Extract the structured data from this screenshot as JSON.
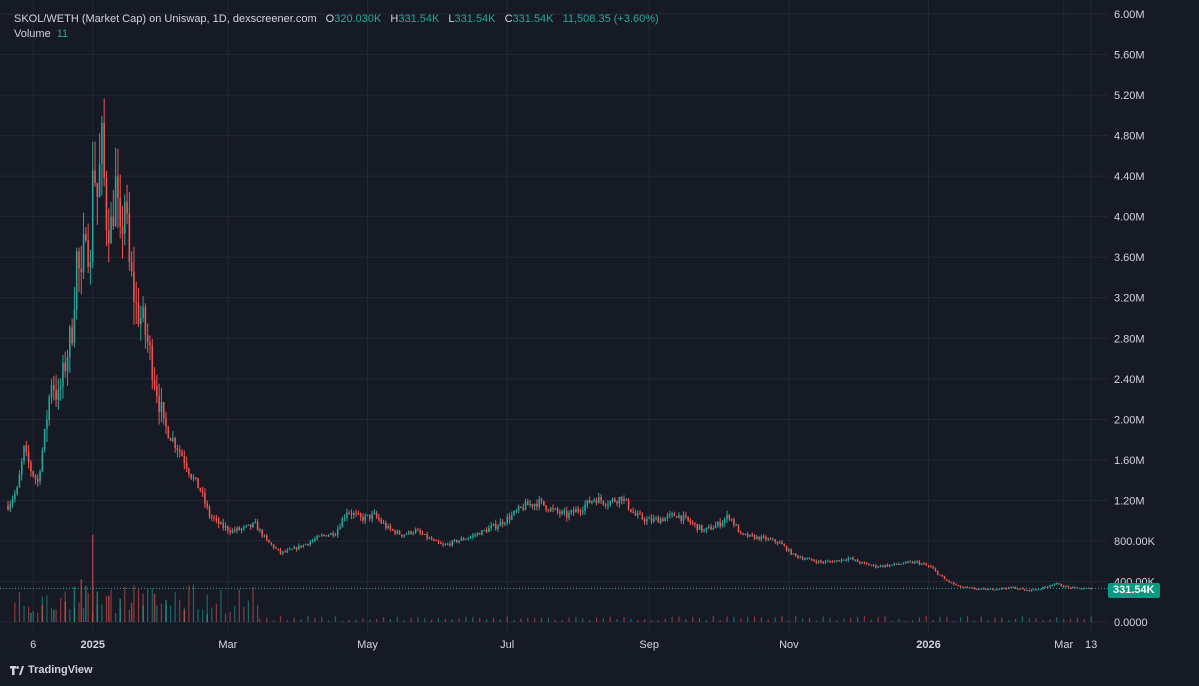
{
  "legend": {
    "pair": "SKOL/WETH (Market Cap) on Uniswap, 1D, dexscreener.com",
    "o_key": "O",
    "o_val": "320.030K",
    "h_key": "H",
    "h_val": "331.54K",
    "l_key": "L",
    "l_val": "331.54K",
    "c_key": "C",
    "c_val": "331.54K",
    "change": "11,508.35 (+3.60%)",
    "volume_label": "Volume",
    "volume_val": "11"
  },
  "last_price_badge": "331.54K",
  "branding": "TradingView",
  "colors": {
    "background": "#161a25",
    "grid": "#232734",
    "up": "#26a69a",
    "down": "#ef5350",
    "text": "#d1d4dc",
    "badge": "#089981"
  },
  "chart_data": {
    "type": "candlestick",
    "title": "SKOL/WETH (Market Cap) on Uniswap, 1D, dexscreener.com",
    "y_ticks": [
      "6.00M",
      "5.60M",
      "5.20M",
      "4.80M",
      "4.40M",
      "4.00M",
      "3.60M",
      "3.20M",
      "2.80M",
      "2.40M",
      "2.00M",
      "1.60M",
      "1.20M",
      "800.00K",
      "400.00K",
      "0.0000"
    ],
    "x_ticks": [
      "6",
      "2025",
      "Mar",
      "May",
      "Jul",
      "Sep",
      "Nov",
      "2026",
      "Mar",
      "13"
    ],
    "ylim": [
      0,
      6000000
    ],
    "x_range": [
      "2024-11-25",
      "2026-03-16"
    ],
    "series": [
      {
        "type": "market_cap_close",
        "points": [
          [
            "2024-11-25",
            1150000
          ],
          [
            "2024-11-29",
            1300000
          ],
          [
            "2024-12-02",
            1700000
          ],
          [
            "2024-12-05",
            1500000
          ],
          [
            "2024-12-08",
            1380000
          ],
          [
            "2024-12-11",
            1850000
          ],
          [
            "2024-12-14",
            2400000
          ],
          [
            "2024-12-17",
            2200000
          ],
          [
            "2024-12-20",
            2550000
          ],
          [
            "2024-12-23",
            2900000
          ],
          [
            "2024-12-25",
            3600000
          ],
          [
            "2024-12-27",
            3300000
          ],
          [
            "2024-12-29",
            4000000
          ],
          [
            "2024-12-31",
            3450000
          ],
          [
            "2025-01-01",
            4600000
          ],
          [
            "2025-01-03",
            4200000
          ],
          [
            "2025-01-05",
            4700000
          ],
          [
            "2025-01-07",
            4000000
          ],
          [
            "2025-01-09",
            3900000
          ],
          [
            "2025-01-11",
            4300000
          ],
          [
            "2025-01-13",
            3700000
          ],
          [
            "2025-01-15",
            4200000
          ],
          [
            "2025-01-17",
            3500000
          ],
          [
            "2025-01-20",
            3100000
          ],
          [
            "2025-01-23",
            2950000
          ],
          [
            "2025-01-26",
            2650000
          ],
          [
            "2025-01-29",
            2300000
          ],
          [
            "2025-02-01",
            1950000
          ],
          [
            "2025-02-05",
            1800000
          ],
          [
            "2025-02-09",
            1650000
          ],
          [
            "2025-02-13",
            1450000
          ],
          [
            "2025-02-17",
            1300000
          ],
          [
            "2025-02-21",
            1050000
          ],
          [
            "2025-02-26",
            950000
          ],
          [
            "2025-03-03",
            900000
          ],
          [
            "2025-03-08",
            920000
          ],
          [
            "2025-03-13",
            960000
          ],
          [
            "2025-03-18",
            800000
          ],
          [
            "2025-03-24",
            680000
          ],
          [
            "2025-03-30",
            720000
          ],
          [
            "2025-04-05",
            780000
          ],
          [
            "2025-04-11",
            850000
          ],
          [
            "2025-04-17",
            880000
          ],
          [
            "2025-04-22",
            1100000
          ],
          [
            "2025-04-28",
            1020000
          ],
          [
            "2025-05-04",
            1050000
          ],
          [
            "2025-05-10",
            920000
          ],
          [
            "2025-05-16",
            860000
          ],
          [
            "2025-05-22",
            900000
          ],
          [
            "2025-05-28",
            820000
          ],
          [
            "2025-06-03",
            750000
          ],
          [
            "2025-06-09",
            800000
          ],
          [
            "2025-06-15",
            840000
          ],
          [
            "2025-06-21",
            900000
          ],
          [
            "2025-06-27",
            960000
          ],
          [
            "2025-07-03",
            1050000
          ],
          [
            "2025-07-09",
            1150000
          ],
          [
            "2025-07-15",
            1180000
          ],
          [
            "2025-07-21",
            1100000
          ],
          [
            "2025-07-27",
            1050000
          ],
          [
            "2025-08-02",
            1120000
          ],
          [
            "2025-08-08",
            1220000
          ],
          [
            "2025-08-14",
            1180000
          ],
          [
            "2025-08-20",
            1230000
          ],
          [
            "2025-08-26",
            1050000
          ],
          [
            "2025-09-01",
            1000000
          ],
          [
            "2025-09-07",
            1020000
          ],
          [
            "2025-09-13",
            1060000
          ],
          [
            "2025-09-19",
            980000
          ],
          [
            "2025-09-25",
            900000
          ],
          [
            "2025-10-01",
            960000
          ],
          [
            "2025-10-06",
            1050000
          ],
          [
            "2025-10-11",
            860000
          ],
          [
            "2025-10-16",
            840000
          ],
          [
            "2025-10-22",
            820000
          ],
          [
            "2025-10-28",
            780000
          ],
          [
            "2025-11-03",
            660000
          ],
          [
            "2025-11-09",
            620000
          ],
          [
            "2025-11-15",
            590000
          ],
          [
            "2025-11-21",
            600000
          ],
          [
            "2025-11-27",
            630000
          ],
          [
            "2025-12-03",
            580000
          ],
          [
            "2025-12-09",
            550000
          ],
          [
            "2025-12-15",
            560000
          ],
          [
            "2025-12-21",
            580000
          ],
          [
            "2025-12-27",
            590000
          ],
          [
            "2026-01-02",
            540000
          ],
          [
            "2026-01-08",
            420000
          ],
          [
            "2026-01-14",
            350000
          ],
          [
            "2026-01-20",
            330000
          ],
          [
            "2026-01-26",
            320000
          ],
          [
            "2026-02-01",
            330000
          ],
          [
            "2026-02-07",
            340000
          ],
          [
            "2026-02-13",
            310000
          ],
          [
            "2026-02-19",
            330000
          ],
          [
            "2026-02-25",
            380000
          ],
          [
            "2026-03-03",
            340000
          ],
          [
            "2026-03-09",
            330000
          ],
          [
            "2026-03-13",
            331540
          ]
        ]
      },
      {
        "type": "volume_spikes",
        "points": [
          [
            "2024-12-05",
            90000
          ],
          [
            "2024-12-10",
            170000
          ],
          [
            "2024-12-15",
            120000
          ],
          [
            "2024-12-20",
            200000
          ],
          [
            "2024-12-24",
            350000
          ],
          [
            "2024-12-27",
            420000
          ],
          [
            "2024-12-29",
            360000
          ],
          [
            "2025-01-01",
            860000
          ],
          [
            "2025-01-03",
            300000
          ],
          [
            "2025-01-08",
            260000
          ],
          [
            "2025-01-13",
            230000
          ],
          [
            "2025-01-18",
            190000
          ],
          [
            "2025-01-23",
            160000
          ],
          [
            "2025-01-28",
            280000
          ],
          [
            "2025-02-02",
            220000
          ],
          [
            "2025-02-10",
            120000
          ],
          [
            "2025-02-20",
            80000
          ]
        ]
      }
    ],
    "last_value": 331540
  }
}
